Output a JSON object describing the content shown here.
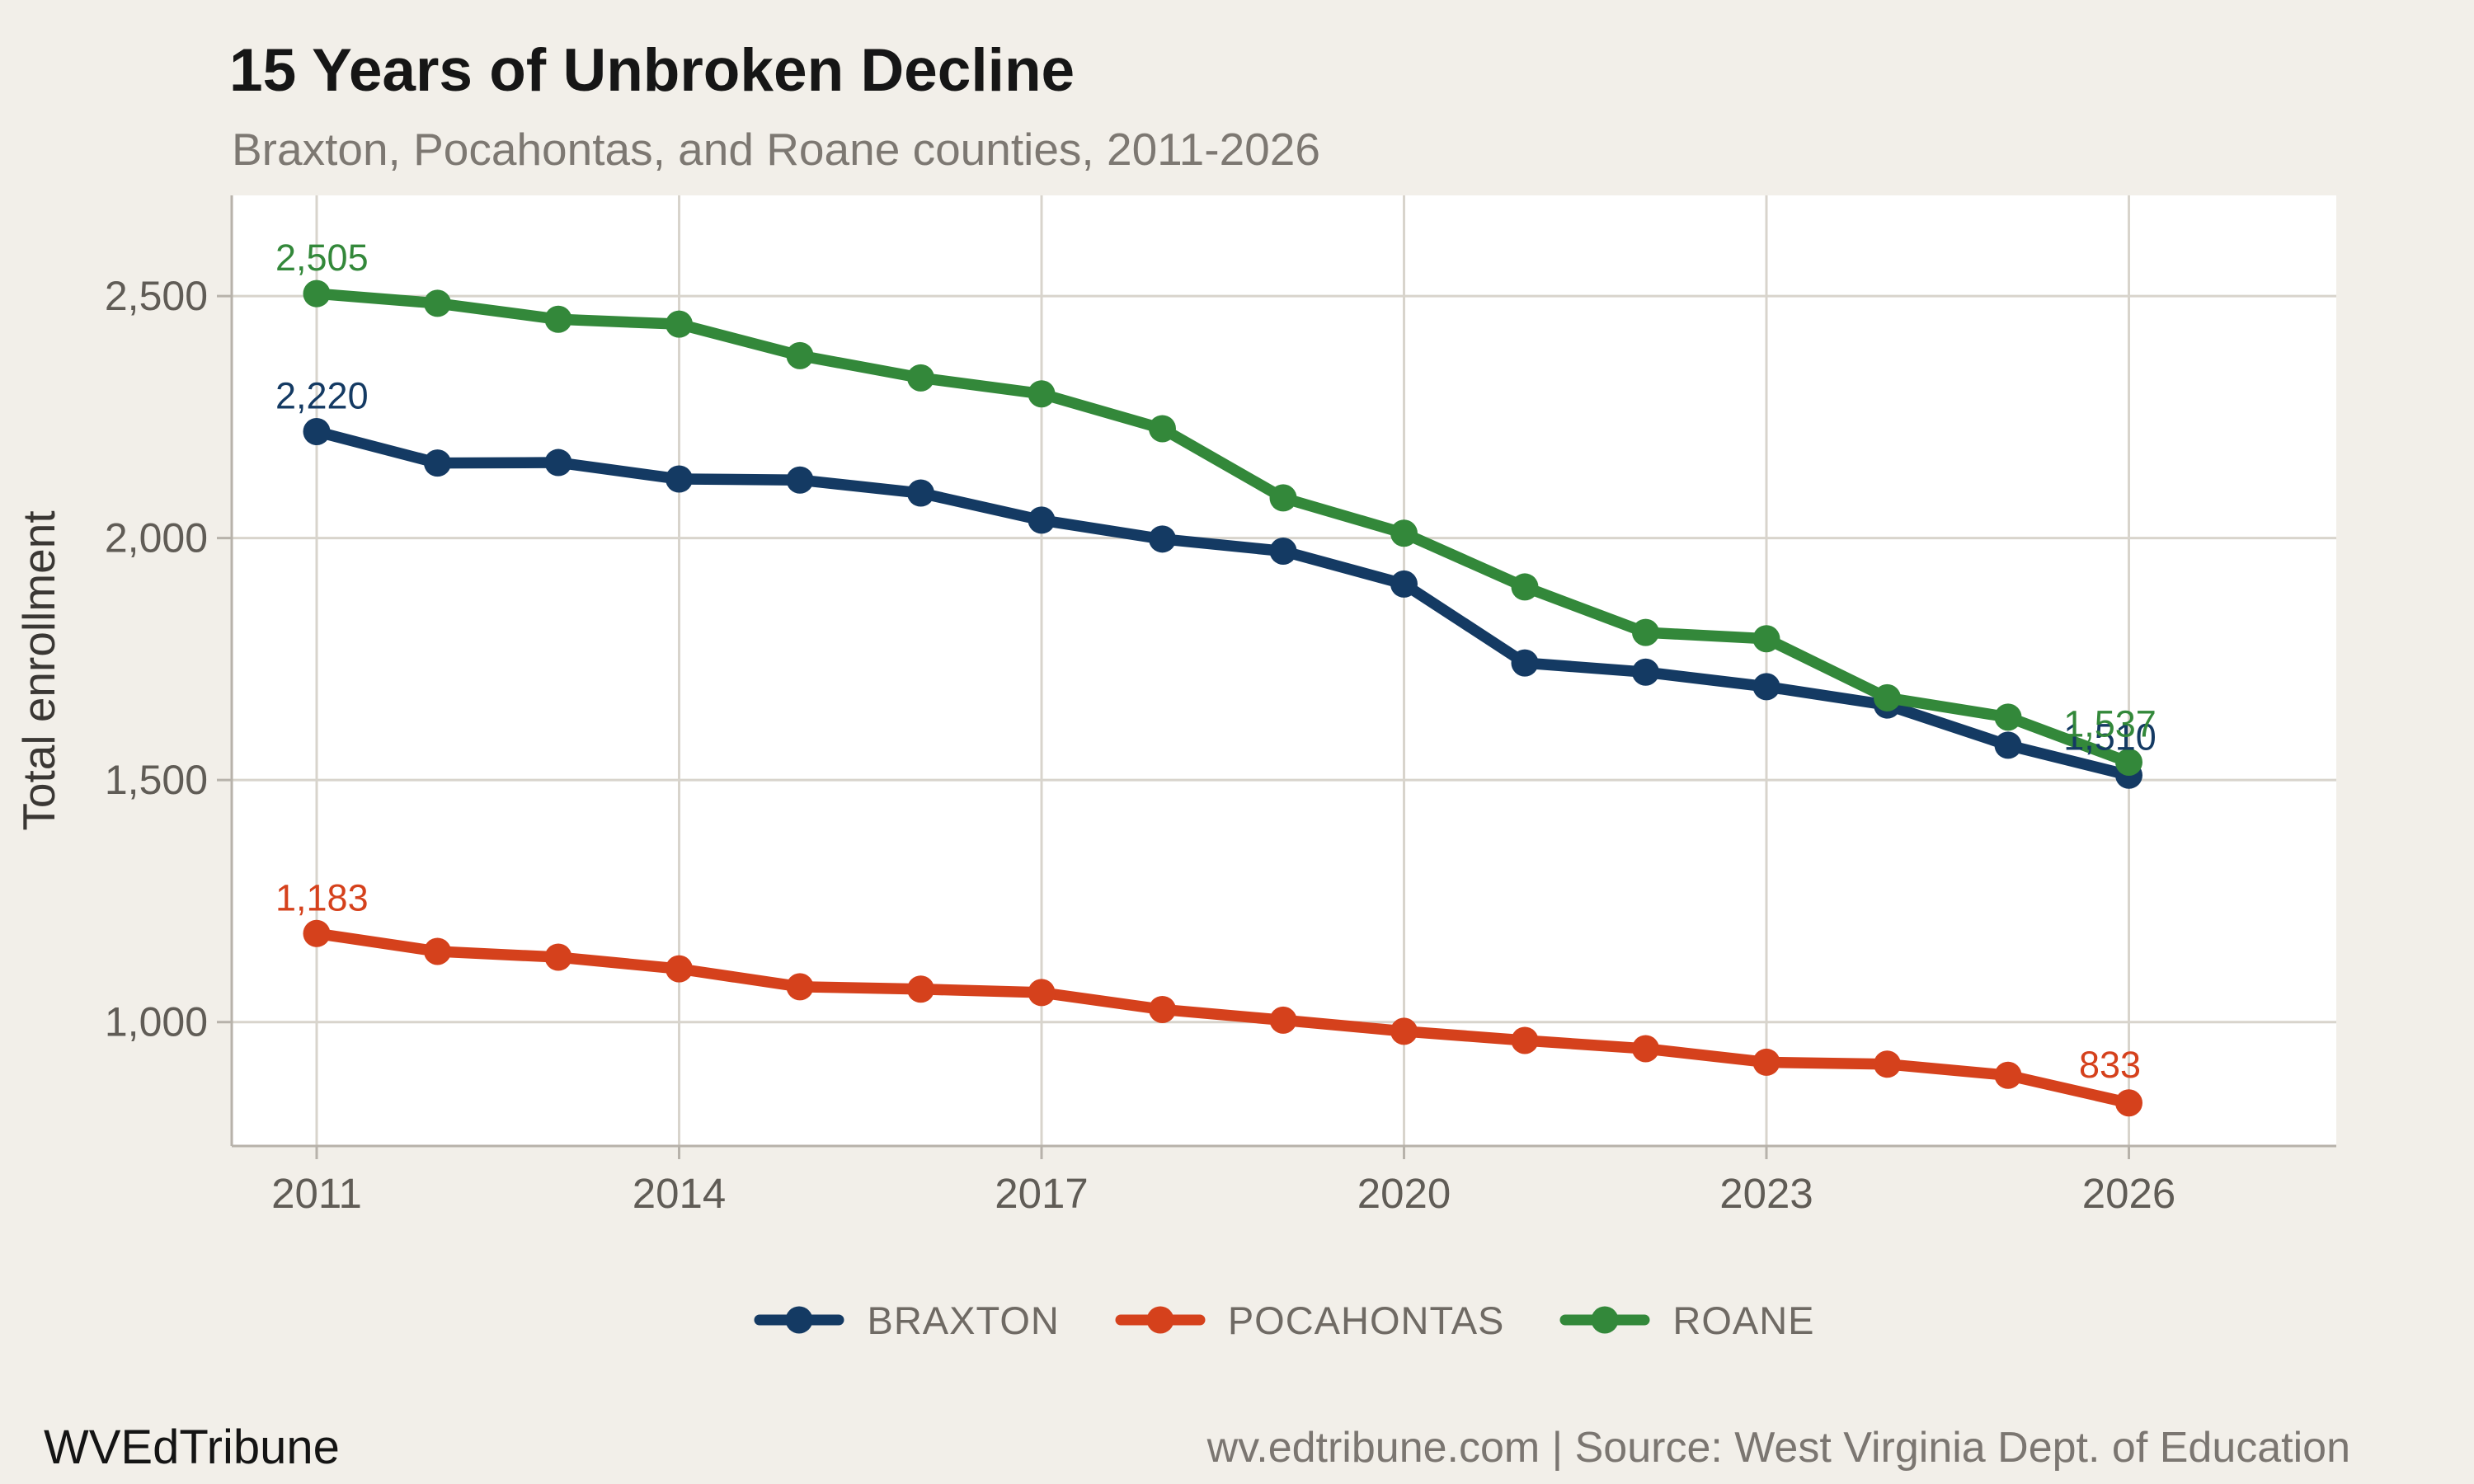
{
  "header": {
    "title": "15 Years of Unbroken Decline",
    "subtitle": "Braxton, Pocahontas, and Roane counties, 2011-2026"
  },
  "footer": {
    "brand": "WVEdTribune",
    "source": "wv.edtribune.com | Source: West Virginia Dept. of Education"
  },
  "colors": {
    "background": "#f2efe9",
    "plot_background": "#ffffff",
    "grid": "#d8d4cc",
    "axis": "#b7b2aa",
    "tick_text": "#605c56",
    "axis_title_text": "#3a3734",
    "title_text": "#161616",
    "subtitle_text": "#7d7872",
    "legend_text": "#6f6a64",
    "braxton": "#143a63",
    "pocahontas": "#d5411c",
    "roane": "#33883a"
  },
  "chart_data": {
    "type": "line",
    "title": "15 Years of Unbroken Decline",
    "subtitle": "Braxton, Pocahontas, and Roane counties, 2011-2026",
    "xlabel": "",
    "ylabel": "Total enrollment",
    "grid": true,
    "legend_position": "bottom",
    "x": [
      2011,
      2012,
      2013,
      2014,
      2015,
      2016,
      2017,
      2018,
      2019,
      2020,
      2021,
      2022,
      2023,
      2024,
      2025,
      2026
    ],
    "x_ticks": [
      2011,
      2014,
      2017,
      2020,
      2023,
      2026
    ],
    "x_tick_labels": [
      "2011",
      "2014",
      "2017",
      "2020",
      "2023",
      "2026"
    ],
    "y_ticks": [
      1000,
      1500,
      2000,
      2500
    ],
    "y_tick_labels": [
      "1,000",
      "1,500",
      "2,000",
      "2,500"
    ],
    "ylim": [
      744,
      2708
    ],
    "series": [
      {
        "name": "BRAXTON",
        "color": "#143a63",
        "values": [
          2220,
          2155,
          2156,
          2122,
          2120,
          2093,
          2037,
          1998,
          1973,
          1905,
          1742,
          1723,
          1693,
          1655,
          1572,
          1510
        ],
        "first_label": "2,220",
        "last_label": "1,510"
      },
      {
        "name": "POCAHONTAS",
        "color": "#d5411c",
        "values": [
          1183,
          1146,
          1134,
          1110,
          1073,
          1068,
          1061,
          1026,
          1004,
          981,
          962,
          945,
          917,
          913,
          890,
          833
        ],
        "first_label": "1,183",
        "last_label": "833"
      },
      {
        "name": "ROANE",
        "color": "#33883a",
        "values": [
          2505,
          2485,
          2452,
          2442,
          2377,
          2331,
          2298,
          2226,
          2083,
          2010,
          1899,
          1805,
          1792,
          1670,
          1630,
          1537
        ],
        "first_label": "2,505",
        "last_label": "1,537"
      }
    ]
  }
}
